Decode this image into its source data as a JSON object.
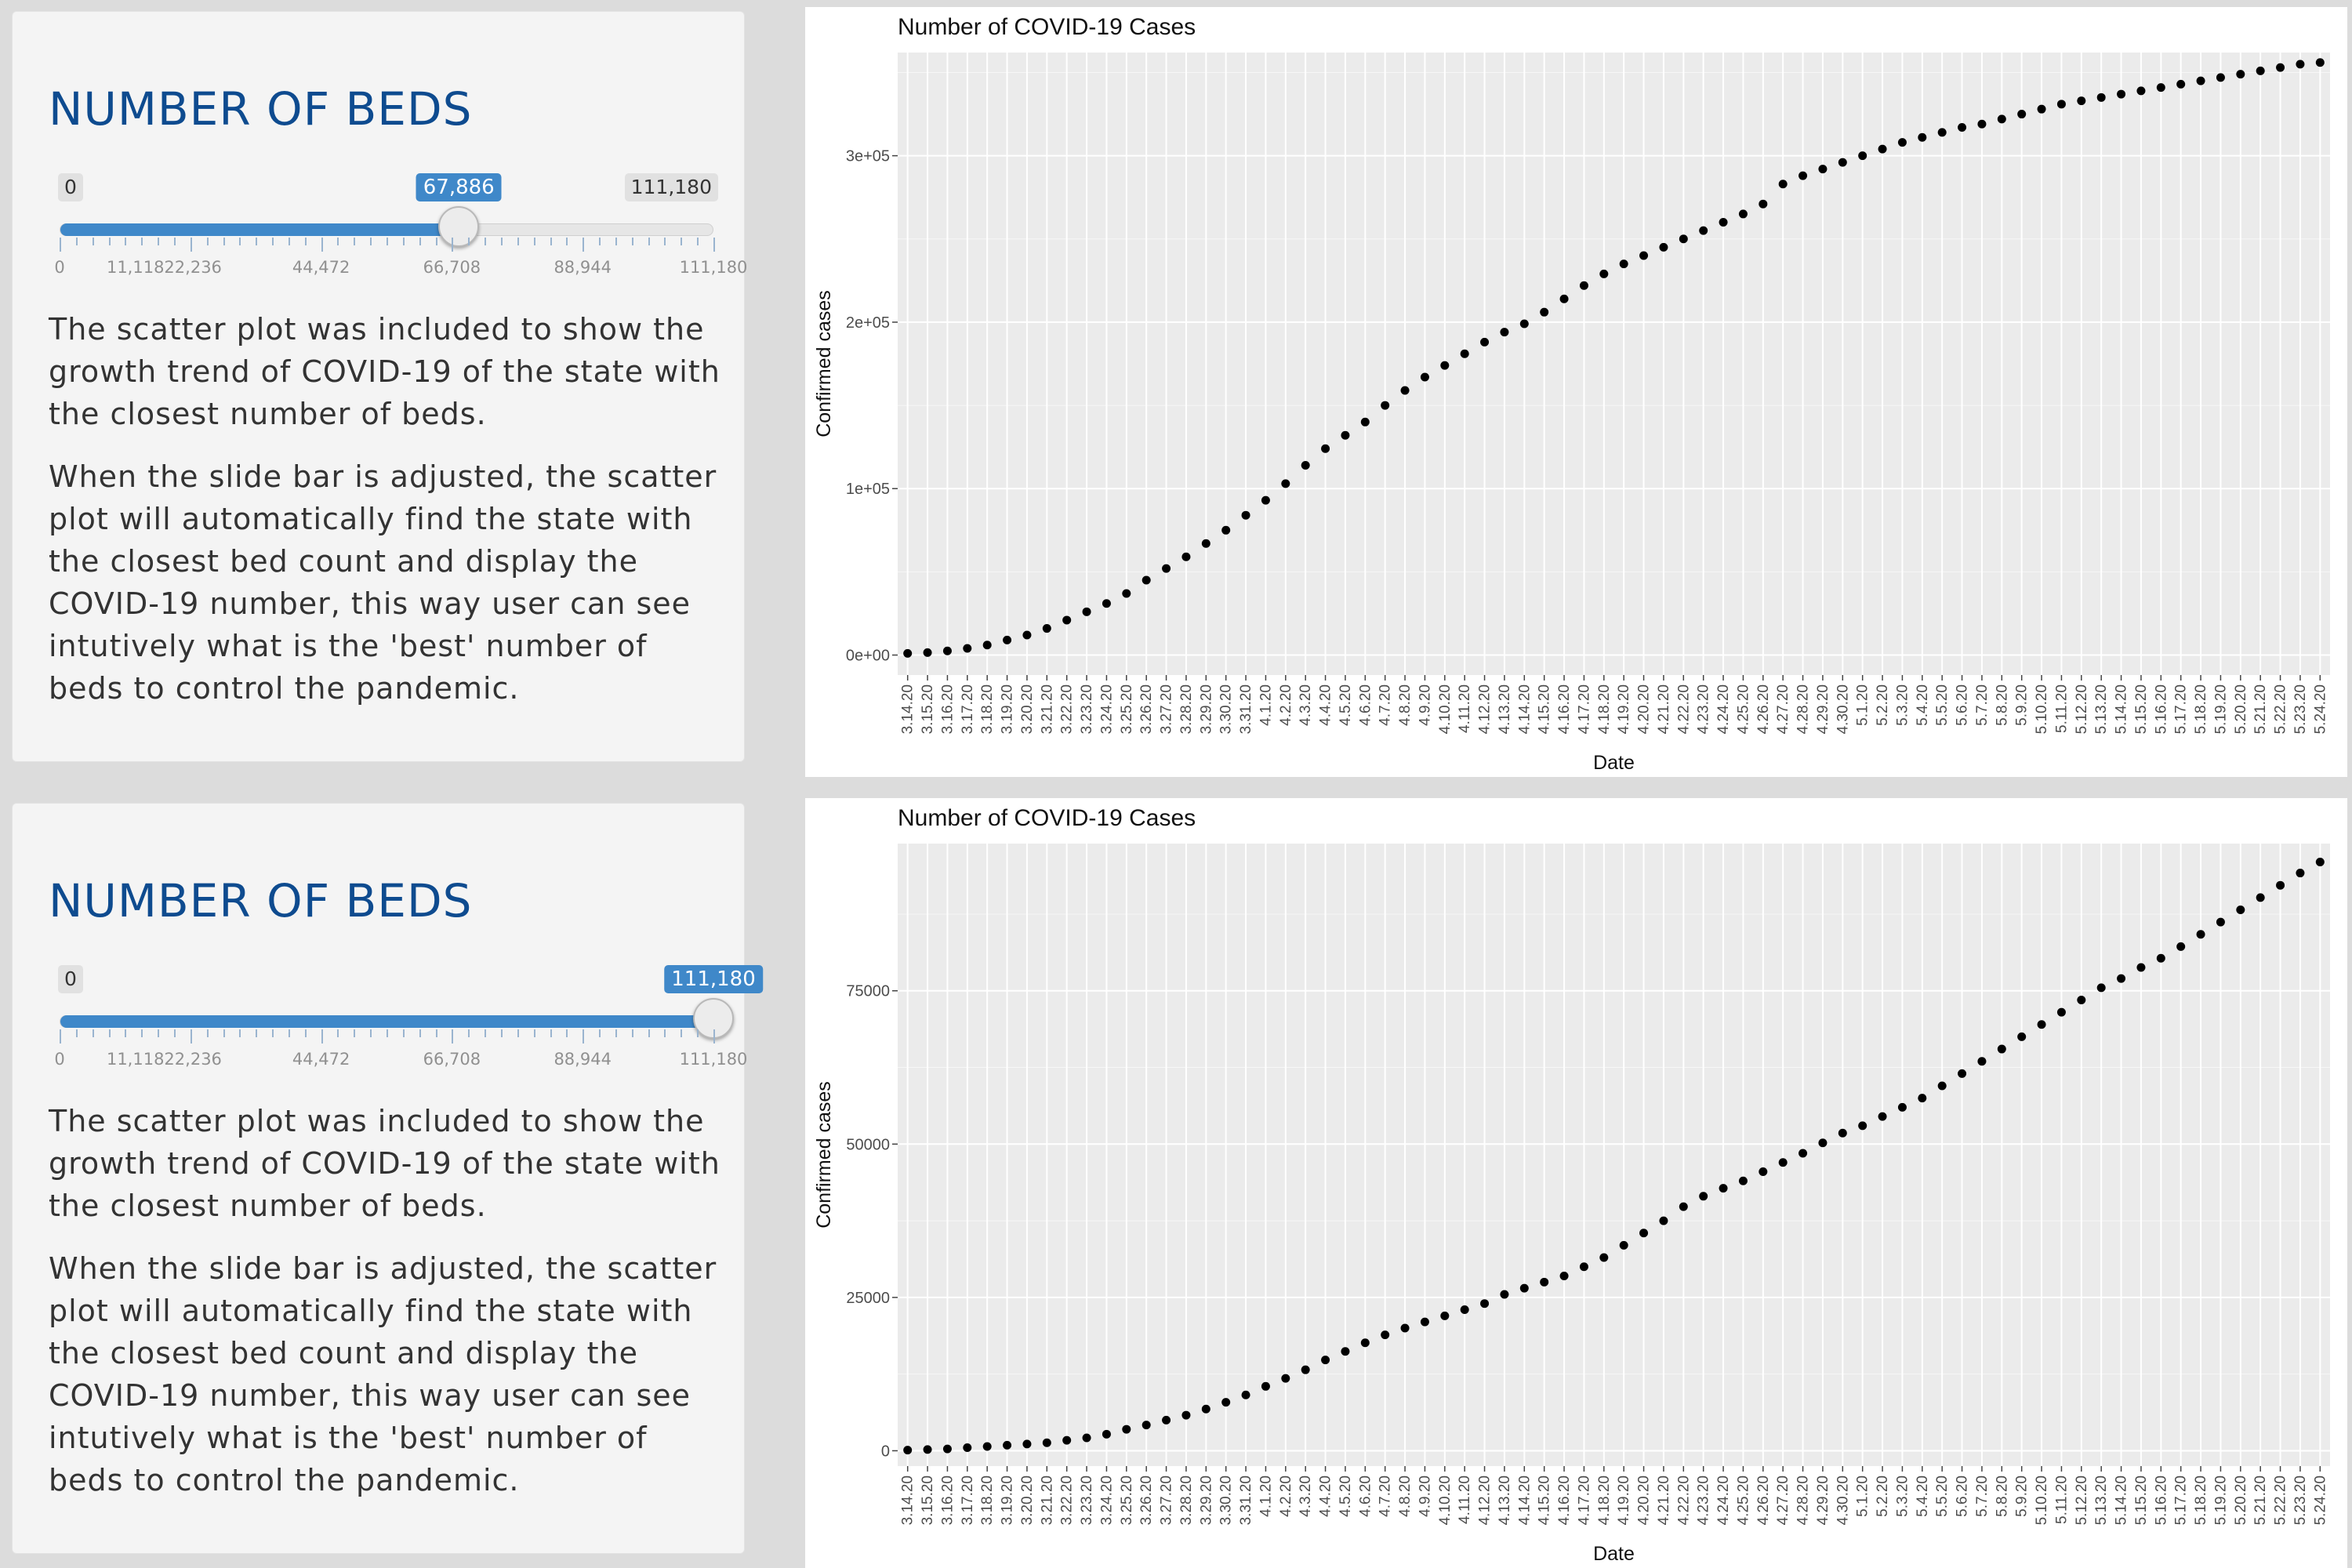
{
  "panels": [
    {
      "heading": "NUMBER OF BEDS",
      "slider": {
        "min_label": "0",
        "max_label": "111,180",
        "value_label": "67,886",
        "value": 67886,
        "min": 0,
        "max": 111180,
        "tick_labels": [
          "0",
          "11,11822,236",
          "44,472",
          "66,708",
          "88,944",
          "111,180"
        ]
      },
      "paragraph1": "The scatter plot was included to show the growth trend of COVID-19 of the state with the closest number of beds.",
      "paragraph2": "When the slide bar is adjusted, the scatter plot will automatically find the state with the closest bed count and display the COVID-19 number, this way user can see intutively what is the 'best' number of beds to control the pandemic."
    },
    {
      "heading": "NUMBER OF BEDS",
      "slider": {
        "min_label": "0",
        "max_label": "111,180",
        "value_label": "111,180",
        "value": 111180,
        "min": 0,
        "max": 111180,
        "tick_labels": [
          "0",
          "11,11822,236",
          "44,472",
          "66,708",
          "88,944",
          "111,180"
        ]
      },
      "paragraph1": "The scatter plot was included to show the growth trend of COVID-19 of the state with the closest number of beds.",
      "paragraph2": "When the slide bar is adjusted, the scatter plot will automatically find the state with the closest bed count and display the COVID-19 number, this way user can see intutively what is the 'best' number of beds to control the pandemic."
    }
  ],
  "chart_data": [
    {
      "type": "scatter",
      "title": "Number of COVID-19 Cases",
      "xlabel": "Date",
      "ylabel": "Confirmed cases",
      "grid": true,
      "ylim": [
        -12000,
        362000
      ],
      "yticks": [
        0,
        100000,
        200000,
        300000
      ],
      "ytick_labels": [
        "0e+00",
        "1e+05",
        "2e+05",
        "3e+05"
      ],
      "x": [
        "3.14.20",
        "3.15.20",
        "3.16.20",
        "3.17.20",
        "3.18.20",
        "3.19.20",
        "3.20.20",
        "3.21.20",
        "3.22.20",
        "3.23.20",
        "3.24.20",
        "3.25.20",
        "3.26.20",
        "3.27.20",
        "3.28.20",
        "3.29.20",
        "3.30.20",
        "3.31.20",
        "4.1.20",
        "4.2.20",
        "4.3.20",
        "4.4.20",
        "4.5.20",
        "4.6.20",
        "4.7.20",
        "4.8.20",
        "4.9.20",
        "4.10.20",
        "4.11.20",
        "4.12.20",
        "4.13.20",
        "4.14.20",
        "4.15.20",
        "4.16.20",
        "4.17.20",
        "4.18.20",
        "4.19.20",
        "4.20.20",
        "4.21.20",
        "4.22.20",
        "4.23.20",
        "4.24.20",
        "4.25.20",
        "4.26.20",
        "4.27.20",
        "4.28.20",
        "4.29.20",
        "4.30.20",
        "5.1.20",
        "5.2.20",
        "5.3.20",
        "5.4.20",
        "5.5.20",
        "5.6.20",
        "5.7.20",
        "5.8.20",
        "5.9.20",
        "5.10.20",
        "5.11.20",
        "5.12.20",
        "5.13.20",
        "5.14.20",
        "5.15.20",
        "5.16.20",
        "5.17.20",
        "5.18.20",
        "5.19.20",
        "5.20.20",
        "5.21.20",
        "5.22.20",
        "5.23.20",
        "5.24.20"
      ],
      "y": [
        1000,
        1500,
        2500,
        4000,
        6000,
        9000,
        12000,
        16000,
        21000,
        26000,
        31000,
        37000,
        45000,
        52000,
        59000,
        67000,
        75000,
        84000,
        93000,
        103000,
        114000,
        124000,
        132000,
        140000,
        150000,
        159000,
        167000,
        174000,
        181000,
        188000,
        194000,
        199000,
        206000,
        214000,
        222000,
        229000,
        235000,
        240000,
        245000,
        250000,
        255000,
        260000,
        265000,
        271000,
        283000,
        288000,
        292000,
        296000,
        300000,
        304000,
        308000,
        311000,
        314000,
        317000,
        319000,
        322000,
        325000,
        328000,
        331000,
        333000,
        335000,
        337000,
        339000,
        341000,
        343000,
        345000,
        347000,
        349000,
        351000,
        353000,
        355000,
        356000
      ]
    },
    {
      "type": "scatter",
      "title": "Number of COVID-19 Cases",
      "xlabel": "Date",
      "ylabel": "Confirmed cases",
      "grid": true,
      "ylim": [
        -2500,
        99000
      ],
      "yticks": [
        0,
        25000,
        50000,
        75000
      ],
      "ytick_labels": [
        "0",
        "25000",
        "50000",
        "75000"
      ],
      "x": [
        "3.14.20",
        "3.15.20",
        "3.16.20",
        "3.17.20",
        "3.18.20",
        "3.19.20",
        "3.20.20",
        "3.21.20",
        "3.22.20",
        "3.23.20",
        "3.24.20",
        "3.25.20",
        "3.26.20",
        "3.27.20",
        "3.28.20",
        "3.29.20",
        "3.30.20",
        "3.31.20",
        "4.1.20",
        "4.2.20",
        "4.3.20",
        "4.4.20",
        "4.5.20",
        "4.6.20",
        "4.7.20",
        "4.8.20",
        "4.9.20",
        "4.10.20",
        "4.11.20",
        "4.12.20",
        "4.13.20",
        "4.14.20",
        "4.15.20",
        "4.16.20",
        "4.17.20",
        "4.18.20",
        "4.19.20",
        "4.20.20",
        "4.21.20",
        "4.22.20",
        "4.23.20",
        "4.24.20",
        "4.25.20",
        "4.26.20",
        "4.27.20",
        "4.28.20",
        "4.29.20",
        "4.30.20",
        "5.1.20",
        "5.2.20",
        "5.3.20",
        "5.4.20",
        "5.5.20",
        "5.6.20",
        "5.7.20",
        "5.8.20",
        "5.9.20",
        "5.10.20",
        "5.11.20",
        "5.12.20",
        "5.13.20",
        "5.14.20",
        "5.15.20",
        "5.16.20",
        "5.17.20",
        "5.18.20",
        "5.19.20",
        "5.20.20",
        "5.21.20",
        "5.22.20",
        "5.23.20",
        "5.24.20"
      ],
      "y": [
        100,
        200,
        300,
        500,
        700,
        900,
        1100,
        1300,
        1700,
        2100,
        2700,
        3500,
        4200,
        5000,
        5800,
        6800,
        7900,
        9100,
        10500,
        11800,
        13200,
        14800,
        16200,
        17600,
        18900,
        20000,
        21000,
        22000,
        23000,
        24000,
        25500,
        26500,
        27500,
        28500,
        30000,
        31500,
        33500,
        35500,
        37500,
        39800,
        41500,
        42800,
        44000,
        45500,
        47000,
        48500,
        50200,
        51800,
        53000,
        54500,
        56000,
        57500,
        59500,
        61500,
        63500,
        65500,
        67500,
        69500,
        71500,
        73500,
        75500,
        77000,
        78800,
        80300,
        82200,
        84200,
        86200,
        88200,
        90200,
        92200,
        94200,
        96000
      ]
    }
  ]
}
